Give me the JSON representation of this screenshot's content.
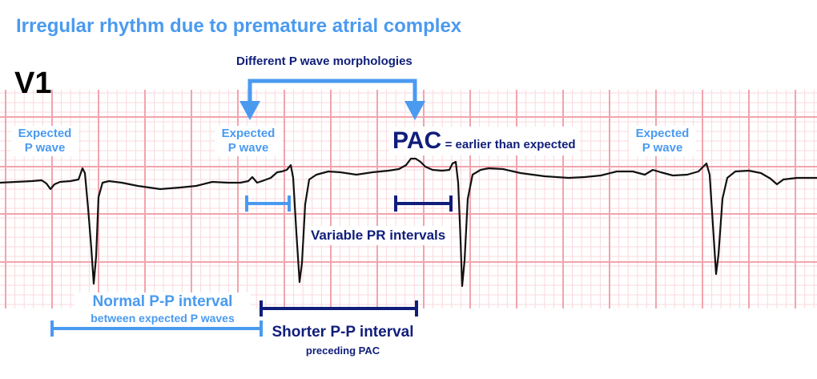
{
  "title": "Irregular rhythm due to premature atrial complex",
  "lead": "V1",
  "annotations": {
    "p_morph": "Different P wave morphologies",
    "expected_p_1": [
      "Expected",
      "P wave"
    ],
    "expected_p_2": [
      "Expected",
      "P wave"
    ],
    "expected_p_3": [
      "Expected",
      "P wave"
    ],
    "pac_abbr": "PAC",
    "pac_desc": "= earlier than expected",
    "variable_pr": "Variable PR intervals",
    "normal_pp": "Normal P-P interval",
    "normal_pp_sub": "between expected P waves",
    "shorter_pp": "Shorter P-P interval",
    "shorter_pp_sub": "preceding PAC"
  },
  "colors": {
    "light_blue": "#4A9AF0",
    "dark_blue": "#101E7A",
    "grid_major": "#F2A4AD",
    "grid_minor": "#FAD8DC",
    "trace": "#111111"
  }
}
